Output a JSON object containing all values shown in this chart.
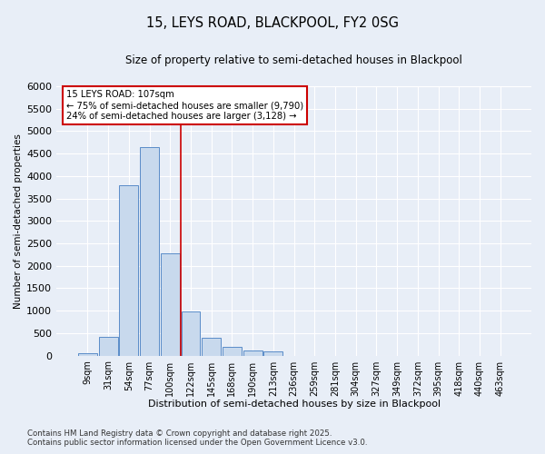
{
  "title_line1": "15, LEYS ROAD, BLACKPOOL, FY2 0SG",
  "title_line2": "Size of property relative to semi-detached houses in Blackpool",
  "xlabel": "Distribution of semi-detached houses by size in Blackpool",
  "ylabel": "Number of semi-detached properties",
  "categories": [
    "9sqm",
    "31sqm",
    "54sqm",
    "77sqm",
    "100sqm",
    "122sqm",
    "145sqm",
    "168sqm",
    "190sqm",
    "213sqm",
    "236sqm",
    "259sqm",
    "281sqm",
    "304sqm",
    "327sqm",
    "349sqm",
    "372sqm",
    "395sqm",
    "418sqm",
    "440sqm",
    "463sqm"
  ],
  "values": [
    50,
    420,
    3800,
    4650,
    2280,
    980,
    390,
    200,
    110,
    90,
    0,
    0,
    0,
    0,
    0,
    0,
    0,
    0,
    0,
    0,
    0
  ],
  "bar_color": "#c8d9ed",
  "bar_edge_color": "#5a8cc8",
  "annotation_text_line1": "15 LEYS ROAD: 107sqm",
  "annotation_text_line2": "← 75% of semi-detached houses are smaller (9,790)",
  "annotation_text_line3": "24% of semi-detached houses are larger (3,128) →",
  "vline_color": "#cc0000",
  "annotation_box_edge_color": "#cc0000",
  "ylim": [
    0,
    6000
  ],
  "yticks": [
    0,
    500,
    1000,
    1500,
    2000,
    2500,
    3000,
    3500,
    4000,
    4500,
    5000,
    5500,
    6000
  ],
  "footnote_line1": "Contains HM Land Registry data © Crown copyright and database right 2025.",
  "footnote_line2": "Contains public sector information licensed under the Open Government Licence v3.0.",
  "bg_color": "#e8eef7",
  "plot_bg_color": "#e8eef7",
  "grid_color": "#ffffff"
}
